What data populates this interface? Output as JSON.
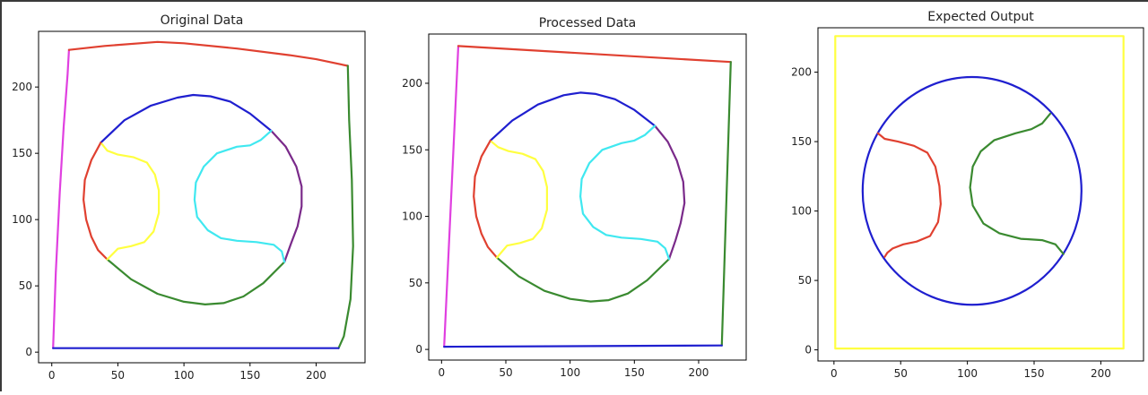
{
  "chart_data": [
    {
      "type": "line",
      "title": "Original Data",
      "xlim": [
        -10,
        237
      ],
      "ylim": [
        -8,
        242
      ],
      "xticks": [
        "0",
        "50",
        "100",
        "150",
        "200"
      ],
      "xtick_values": [
        0,
        50,
        100,
        150,
        200
      ],
      "yticks": [
        "0",
        "50",
        "100",
        "150",
        "200"
      ],
      "ytick_values": [
        0,
        50,
        100,
        150,
        200
      ],
      "series": [
        {
          "color": "#e040e0",
          "x": [
            1,
            3,
            6,
            9,
            12,
            13
          ],
          "y": [
            3,
            60,
            120,
            170,
            210,
            228
          ]
        },
        {
          "color": "#e04030",
          "x": [
            13,
            40,
            80,
            100,
            140,
            180,
            200,
            224
          ],
          "y": [
            228,
            231,
            234,
            233,
            229,
            224,
            221,
            216
          ]
        },
        {
          "color": "#3a8a30",
          "x": [
            224,
            225,
            227,
            228,
            226,
            221,
            217
          ],
          "y": [
            216,
            175,
            130,
            80,
            40,
            12,
            3
          ]
        },
        {
          "color": "#1f1fcf",
          "x": [
            1,
            50,
            100,
            150,
            217
          ],
          "y": [
            3,
            3,
            3,
            3,
            3
          ]
        },
        {
          "color": "#1f1fcf",
          "x": [
            37,
            55,
            75,
            95,
            107,
            120,
            135,
            150,
            166
          ],
          "y": [
            158,
            175,
            186,
            192,
            194,
            193,
            189,
            180,
            167
          ]
        },
        {
          "color": "#e04030",
          "x": [
            37,
            30,
            25,
            24,
            26,
            30,
            35,
            42
          ],
          "y": [
            158,
            145,
            130,
            115,
            100,
            87,
            77,
            70
          ]
        },
        {
          "color": "#3a8a30",
          "x": [
            42,
            60,
            80,
            100,
            116,
            130,
            145,
            160,
            176
          ],
          "y": [
            70,
            55,
            44,
            38,
            36,
            37,
            42,
            52,
            68
          ]
        },
        {
          "color": "#7a2a8a",
          "x": [
            166,
            177,
            185,
            189,
            189,
            186,
            181,
            176
          ],
          "y": [
            167,
            155,
            140,
            125,
            110,
            95,
            82,
            68
          ]
        },
        {
          "color": "#ffff40",
          "x": [
            38,
            42,
            50,
            62,
            72,
            78,
            81,
            81,
            77,
            70,
            60,
            50,
            42
          ],
          "y": [
            157,
            152,
            149,
            147,
            143,
            134,
            122,
            105,
            91,
            83,
            80,
            78,
            70
          ]
        },
        {
          "color": "#40e8f0",
          "x": [
            166,
            158,
            150,
            140,
            125,
            115,
            109,
            108,
            110,
            118,
            128,
            140,
            155,
            168,
            174,
            176
          ],
          "y": [
            167,
            160,
            156,
            155,
            150,
            140,
            128,
            115,
            102,
            92,
            86,
            84,
            83,
            81,
            76,
            68
          ]
        }
      ]
    },
    {
      "type": "line",
      "title": "Processed Data",
      "xlim": [
        -10,
        237
      ],
      "ylim": [
        -8,
        237
      ],
      "xticks": [
        "0",
        "50",
        "100",
        "150",
        "200"
      ],
      "xtick_values": [
        0,
        50,
        100,
        150,
        200
      ],
      "yticks": [
        "0",
        "50",
        "100",
        "150",
        "200"
      ],
      "ytick_values": [
        0,
        50,
        100,
        150,
        200
      ],
      "series": [
        {
          "color": "#e040e0",
          "x": [
            2,
            13
          ],
          "y": [
            2,
            228
          ]
        },
        {
          "color": "#e04030",
          "x": [
            13,
            225
          ],
          "y": [
            228,
            216
          ]
        },
        {
          "color": "#3a8a30",
          "x": [
            225,
            218
          ],
          "y": [
            216,
            3
          ]
        },
        {
          "color": "#1f1fcf",
          "x": [
            2,
            218
          ],
          "y": [
            2,
            3
          ]
        },
        {
          "color": "#1f1fcf",
          "x": [
            38,
            55,
            75,
            95,
            108,
            120,
            135,
            150,
            166
          ],
          "y": [
            157,
            172,
            184,
            191,
            193,
            192,
            188,
            180,
            168
          ]
        },
        {
          "color": "#e04030",
          "x": [
            38,
            31,
            26,
            25,
            27,
            31,
            36,
            43
          ],
          "y": [
            157,
            145,
            130,
            115,
            100,
            87,
            77,
            69
          ]
        },
        {
          "color": "#3a8a30",
          "x": [
            43,
            60,
            80,
            100,
            116,
            130,
            145,
            160,
            177
          ],
          "y": [
            69,
            55,
            44,
            38,
            36,
            37,
            42,
            52,
            68
          ]
        },
        {
          "color": "#7a2a8a",
          "x": [
            166,
            176,
            183,
            188,
            189,
            186,
            182,
            177
          ],
          "y": [
            168,
            156,
            142,
            126,
            110,
            95,
            82,
            68
          ]
        },
        {
          "color": "#ffff40",
          "x": [
            39,
            44,
            52,
            63,
            73,
            79,
            82,
            82,
            78,
            71,
            61,
            51,
            43
          ],
          "y": [
            156,
            152,
            149,
            147,
            143,
            134,
            122,
            105,
            91,
            83,
            80,
            78,
            69
          ]
        },
        {
          "color": "#40e8f0",
          "x": [
            166,
            158,
            150,
            140,
            125,
            115,
            109,
            108,
            110,
            118,
            128,
            140,
            155,
            168,
            174,
            177
          ],
          "y": [
            168,
            161,
            157,
            155,
            150,
            140,
            128,
            115,
            102,
            92,
            86,
            84,
            83,
            81,
            76,
            68
          ]
        }
      ]
    },
    {
      "type": "line",
      "title": "Expected Output",
      "xlim": [
        -12,
        232
      ],
      "ylim": [
        -8,
        232
      ],
      "xticks": [
        "0",
        "50",
        "100",
        "150",
        "200"
      ],
      "xtick_values": [
        0,
        50,
        100,
        150,
        200
      ],
      "yticks": [
        "0",
        "50",
        "100",
        "150",
        "200"
      ],
      "ytick_values": [
        0,
        50,
        100,
        150,
        200
      ],
      "series": [
        {
          "color": "#ffff40",
          "x": [
            1,
            1,
            217,
            217,
            1
          ],
          "y": [
            1,
            226,
            226,
            1,
            1
          ]
        },
        {
          "color": "#1f1fcf",
          "circle": true,
          "cx": 103.5,
          "cy": 114.5,
          "r": 82
        },
        {
          "color": "#e04030",
          "x": [
            33,
            38,
            48,
            60,
            70,
            76,
            79,
            80,
            78,
            72,
            62,
            52,
            44,
            40,
            38
          ],
          "y": [
            156,
            152,
            150,
            147,
            142,
            132,
            118,
            105,
            92,
            82,
            78,
            76,
            73,
            70,
            67
          ]
        },
        {
          "color": "#3a8a30",
          "x": [
            162,
            156,
            148,
            136,
            120,
            110,
            104,
            102,
            104,
            112,
            124,
            140,
            156,
            166,
            172
          ],
          "y": [
            170,
            163,
            159,
            156,
            151,
            143,
            132,
            117,
            104,
            91,
            84,
            80,
            79,
            76,
            69
          ]
        }
      ]
    }
  ]
}
